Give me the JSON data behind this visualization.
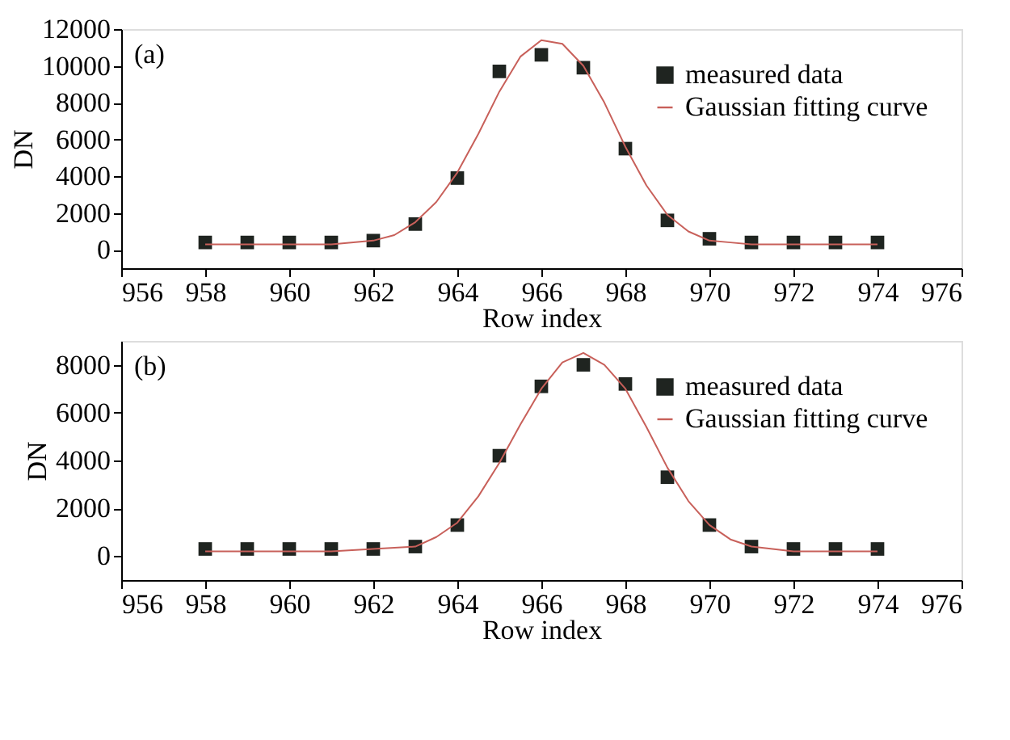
{
  "chart_data": [
    {
      "type": "scatter",
      "xlabel": "Row index",
      "ylabel": "DN",
      "annotations": [
        "(a)"
      ],
      "xlim": [
        956,
        976
      ],
      "xticks": [
        956,
        958,
        960,
        962,
        964,
        966,
        968,
        970,
        972,
        974,
        976
      ],
      "ylim": [
        -1000,
        12000
      ],
      "yticks": [
        0,
        2000,
        4000,
        6000,
        8000,
        10000,
        12000
      ],
      "grid": false,
      "legend": "top right",
      "series": [
        {
          "name": "measured data",
          "type": "scatter",
          "marker": "square",
          "color": "#1f2420",
          "x": [
            958,
            959,
            960,
            961,
            962,
            963,
            964,
            965,
            966,
            967,
            968,
            969,
            970,
            971,
            972,
            973,
            974
          ],
          "values": [
            400,
            400,
            400,
            400,
            500,
            1400,
            3900,
            9700,
            10600,
            9900,
            5500,
            1600,
            600,
            400,
            400,
            400,
            400
          ]
        },
        {
          "name": "Gaussian fitting curve",
          "type": "line",
          "line_style": "solid",
          "color": "#c8605a",
          "x": [
            958,
            960,
            961,
            962,
            962.5,
            963,
            963.5,
            964,
            964.5,
            965,
            965.5,
            966,
            966.5,
            967,
            967.5,
            968,
            968.5,
            969,
            969.5,
            970,
            970.5,
            971,
            972,
            974
          ],
          "values": [
            300,
            300,
            300,
            500,
            800,
            1500,
            2600,
            4200,
            6300,
            8600,
            10500,
            11400,
            11200,
            10000,
            8000,
            5600,
            3500,
            1900,
            1000,
            500,
            400,
            300,
            300,
            300
          ]
        }
      ]
    },
    {
      "type": "scatter",
      "xlabel": "Row index",
      "ylabel": "DN",
      "annotations": [
        "(b)"
      ],
      "xlim": [
        956,
        976
      ],
      "xticks": [
        956,
        958,
        960,
        962,
        964,
        966,
        968,
        970,
        972,
        974,
        976
      ],
      "ylim": [
        -1000,
        9000
      ],
      "yticks": [
        0,
        2000,
        4000,
        6000,
        8000
      ],
      "grid": false,
      "legend": "top right",
      "series": [
        {
          "name": "measured data",
          "type": "scatter",
          "marker": "square",
          "color": "#1f2420",
          "x": [
            958,
            959,
            960,
            961,
            962,
            963,
            964,
            965,
            966,
            967,
            968,
            969,
            970,
            971,
            972,
            973,
            974
          ],
          "values": [
            300,
            300,
            300,
            300,
            300,
            400,
            1300,
            4200,
            7100,
            8000,
            7200,
            3300,
            1300,
            400,
            300,
            300,
            300
          ]
        },
        {
          "name": "Gaussian fitting curve",
          "type": "line",
          "line_style": "solid",
          "color": "#c8605a",
          "x": [
            958,
            961,
            962,
            963,
            963.5,
            964,
            964.5,
            965,
            965.5,
            966,
            966.5,
            967,
            967.5,
            968,
            968.5,
            969,
            969.5,
            970,
            970.5,
            971,
            972,
            974
          ],
          "values": [
            200,
            200,
            300,
            400,
            800,
            1400,
            2500,
            3900,
            5500,
            7000,
            8100,
            8500,
            8000,
            7000,
            5400,
            3700,
            2300,
            1300,
            700,
            400,
            200,
            200
          ]
        }
      ]
    }
  ]
}
